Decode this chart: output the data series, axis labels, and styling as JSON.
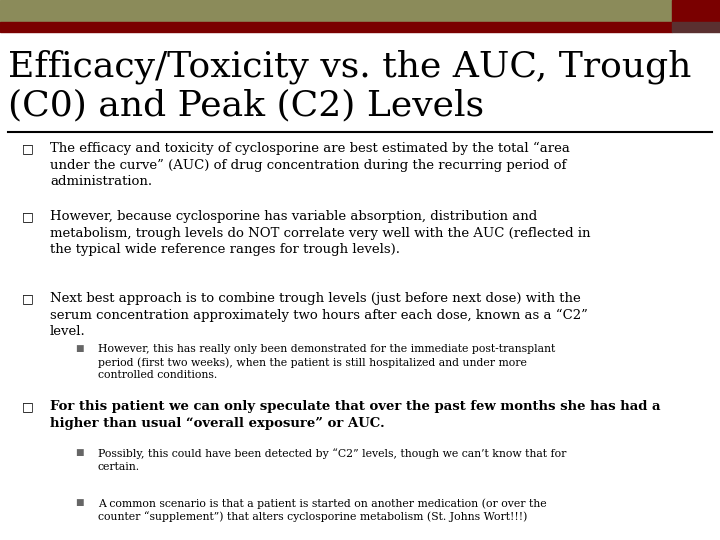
{
  "bg_color": "#ffffff",
  "header_bar_color": "#8b8b5a",
  "header_red_color": "#7a0000",
  "title_line1": "Efficacy/Toxicity vs. the AUC, Trough",
  "title_line2": "(C0) and Peak (C2) Levels",
  "title_fontsize": 26,
  "title_color": "#000000",
  "separator_color": "#000000",
  "bullet_color": "#000000",
  "bullet_symbol": "□",
  "sub_bullet_symbol": "■",
  "bullet1": "The efficacy and toxicity of cyclosporine are best estimated by the total “area\nunder the curve” (AUC) of drug concentration during the recurring period of\nadministration.",
  "bullet2": "However, because cyclosporine has variable absorption, distribution and\nmetabolism, trough levels do NOT correlate very well with the AUC (reflected in\nthe typical wide reference ranges for trough levels).",
  "bullet3": "Next best approach is to combine trough levels (just before next dose) with the\nserum concentration approximately two hours after each dose, known as a “C2”\nlevel.",
  "sub_bullet3_1": "However, this has really only been demonstrated for the immediate post-transplant\nperiod (first two weeks), when the patient is still hospitalized and under more\ncontrolled conditions.",
  "bullet4": "For this patient we can only speculate that over the past few months she has had a\nhigher than usual “overall exposure” or AUC.",
  "sub_bullet4_1": "Possibly, this could have been detected by “C2” levels, though we can’t know that for\ncertain.",
  "sub_bullet4_2": "A common scenario is that a patient is started on another medication (or over the\ncounter “supplement”) that alters cyclosporine metabolism (St. Johns Wort!!!)",
  "fs_main": 9.5,
  "fs_sub": 7.8,
  "fs_bullet": 9.0
}
